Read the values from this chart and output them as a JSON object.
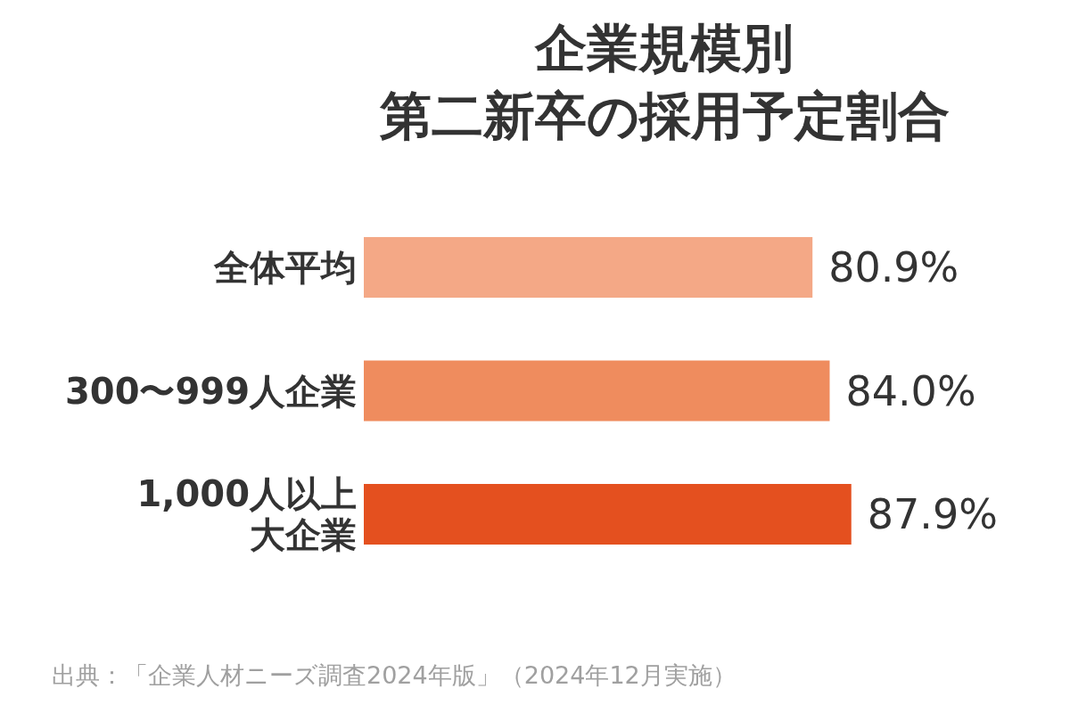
{
  "chart_data": {
    "type": "bar",
    "orientation": "horizontal",
    "title": "企業規模別",
    "subtitle": "第二新卒の採用予定割合",
    "categories": [
      "全体平均",
      "300〜999人企業",
      "1,000人以上大企業"
    ],
    "values": [
      80.9,
      84.0,
      87.9
    ],
    "value_labels": [
      "80.9%",
      "84.0%",
      "87.9%"
    ],
    "colors": [
      "#f4a886",
      "#ef8c5e",
      "#e4501f"
    ],
    "annotations": [
      "出典：「企業人材ニーズ調査2024年版」（2024年12月実施）"
    ]
  }
}
